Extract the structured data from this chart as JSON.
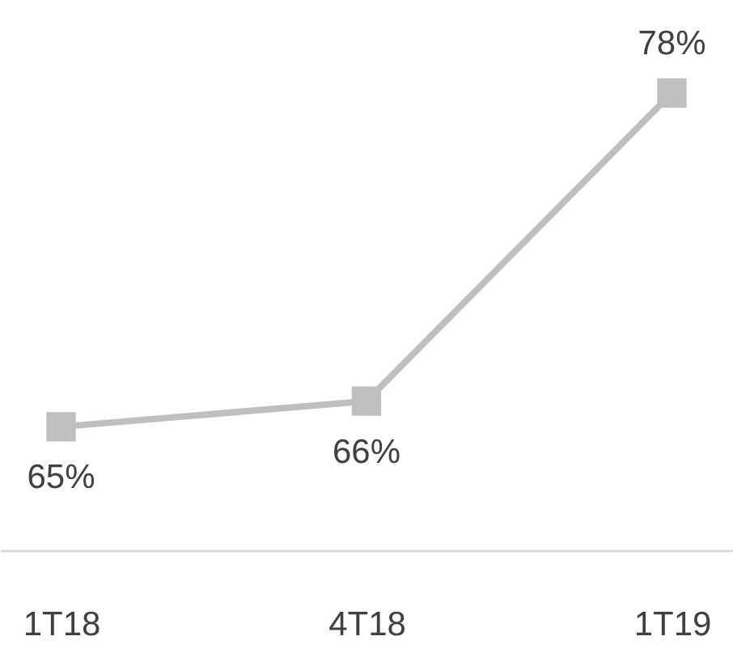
{
  "chart_data": {
    "type": "line",
    "categories": [
      "1T18",
      "4T18",
      "1T19"
    ],
    "values": [
      65,
      66,
      78
    ],
    "value_labels": [
      "65%",
      "66%",
      "78%"
    ],
    "color": "#bfbfbf",
    "marker": "square",
    "line_style": "solid",
    "grid": false,
    "tick_labels": "x"
  }
}
